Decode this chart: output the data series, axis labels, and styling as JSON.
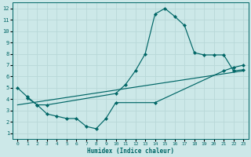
{
  "xlabel": "Humidex (Indice chaleur)",
  "bg_color": "#cce8e8",
  "grid_color": "#b8d8d8",
  "line_color": "#006666",
  "xlim": [
    -0.5,
    23.5
  ],
  "ylim": [
    0.5,
    12.5
  ],
  "xticks": [
    0,
    1,
    2,
    3,
    4,
    5,
    6,
    7,
    8,
    9,
    10,
    11,
    12,
    13,
    14,
    15,
    16,
    17,
    18,
    19,
    20,
    21,
    22,
    23
  ],
  "yticks": [
    1,
    2,
    3,
    4,
    5,
    6,
    7,
    8,
    9,
    10,
    11,
    12
  ],
  "line_peak_x": [
    0,
    1,
    2,
    3,
    10,
    11,
    12,
    13,
    14,
    15,
    16,
    17,
    18,
    19,
    20,
    21,
    22,
    23
  ],
  "line_peak_y": [
    5.0,
    4.2,
    3.5,
    3.5,
    4.5,
    5.3,
    6.5,
    8.0,
    11.5,
    12.0,
    11.3,
    10.5,
    8.1,
    7.9,
    7.9,
    7.9,
    6.5,
    6.6
  ],
  "line_low_x": [
    1,
    2,
    3,
    4,
    5,
    6,
    7,
    8,
    9,
    10,
    14,
    21,
    22,
    23
  ],
  "line_low_y": [
    4.1,
    3.5,
    2.7,
    2.5,
    2.3,
    2.3,
    1.6,
    1.4,
    2.3,
    3.7,
    3.7,
    6.5,
    6.8,
    7.0
  ],
  "line_trend_x": [
    0,
    23
  ],
  "line_trend_y": [
    3.5,
    6.5
  ]
}
